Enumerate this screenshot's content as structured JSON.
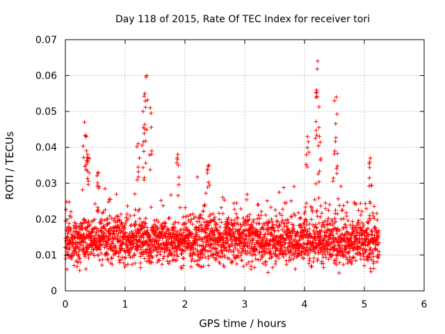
{
  "chart_data": {
    "type": "scatter",
    "title": "Day 118 of 2015, Rate Of TEC Index for receiver tori",
    "xlabel": "GPS time / hours",
    "ylabel": "ROTI / TECUs",
    "xlim": [
      0,
      6
    ],
    "ylim": [
      0,
      0.07
    ],
    "xticks": [
      0,
      1,
      2,
      3,
      4,
      5,
      6
    ],
    "xtick_labels": [
      "0",
      "1",
      "2",
      "3",
      "4",
      "5",
      "6"
    ],
    "yticks": [
      0,
      0.01,
      0.02,
      0.03,
      0.04,
      0.05,
      0.06,
      0.07
    ],
    "ytick_labels": [
      "0",
      "0.01",
      "0.02",
      "0.03",
      "0.04",
      "0.05",
      "0.06",
      "0.07"
    ],
    "grid": true,
    "marker": "+",
    "color": "#ff0000",
    "data_x_range": [
      0,
      5.25
    ],
    "baseline_band": [
      0.005,
      0.028
    ],
    "typical_value": 0.014,
    "spikes": [
      {
        "x": 0.32,
        "y": 0.047
      },
      {
        "x": 0.35,
        "y": 0.043
      },
      {
        "x": 0.38,
        "y": 0.037
      },
      {
        "x": 0.55,
        "y": 0.033
      },
      {
        "x": 1.22,
        "y": 0.041
      },
      {
        "x": 1.3,
        "y": 0.05
      },
      {
        "x": 1.33,
        "y": 0.055
      },
      {
        "x": 1.36,
        "y": 0.06
      },
      {
        "x": 1.42,
        "y": 0.051
      },
      {
        "x": 1.88,
        "y": 0.038
      },
      {
        "x": 2.4,
        "y": 0.035
      },
      {
        "x": 4.05,
        "y": 0.043
      },
      {
        "x": 4.2,
        "y": 0.056
      },
      {
        "x": 4.22,
        "y": 0.064
      },
      {
        "x": 4.25,
        "y": 0.043
      },
      {
        "x": 4.5,
        "y": 0.053
      },
      {
        "x": 4.53,
        "y": 0.054
      },
      {
        "x": 5.1,
        "y": 0.037
      }
    ]
  }
}
